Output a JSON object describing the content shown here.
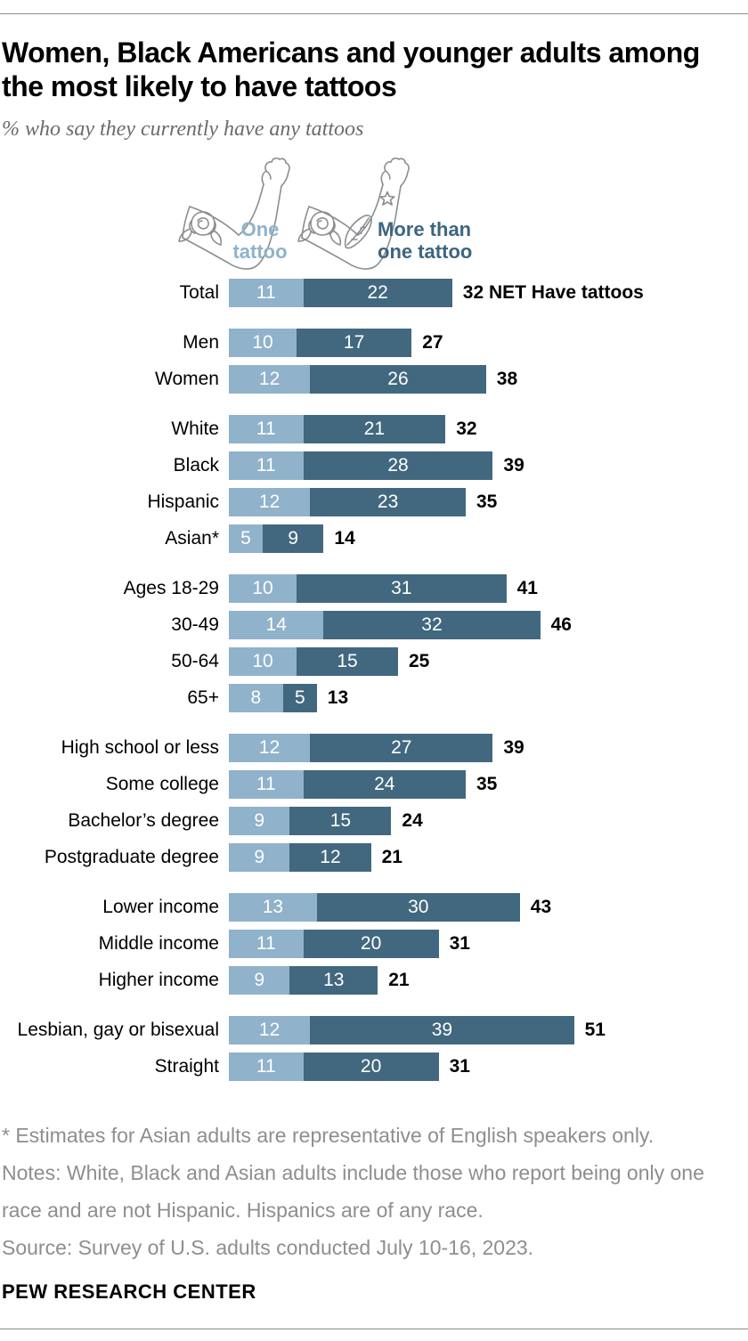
{
  "header": {
    "title": "Women, Black Americans and younger adults among\nthe most likely to have tattoos",
    "subtitle": "% who say they currently have any tattoos"
  },
  "legend": {
    "one": {
      "label": "One\ntattoo",
      "color": "#90b2cb"
    },
    "more": {
      "label": "More than\none tattoo",
      "color": "#3d6580"
    }
  },
  "chart_data": {
    "type": "bar",
    "orientation": "horizontal",
    "stacked": true,
    "units": "percent",
    "series_names": [
      "One tattoo",
      "More than one tattoo"
    ],
    "colors": {
      "one": "#90b2cb",
      "more": "#42687f"
    },
    "net_suffix_total": "NET Have tattoos",
    "groups": [
      {
        "name": "total",
        "rows": [
          {
            "label": "Total",
            "one": 11,
            "more": 22,
            "net": 32,
            "net_suffix": "NET Have tattoos"
          }
        ]
      },
      {
        "name": "gender",
        "rows": [
          {
            "label": "Men",
            "one": 10,
            "more": 17,
            "net": 27
          },
          {
            "label": "Women",
            "one": 12,
            "more": 26,
            "net": 38
          }
        ]
      },
      {
        "name": "race-ethnicity",
        "rows": [
          {
            "label": "White",
            "one": 11,
            "more": 21,
            "net": 32
          },
          {
            "label": "Black",
            "one": 11,
            "more": 28,
            "net": 39
          },
          {
            "label": "Hispanic",
            "one": 12,
            "more": 23,
            "net": 35
          },
          {
            "label": "Asian*",
            "one": 5,
            "more": 9,
            "net": 14
          }
        ]
      },
      {
        "name": "age",
        "rows": [
          {
            "label": "Ages 18-29",
            "one": 10,
            "more": 31,
            "net": 41
          },
          {
            "label": "30-49",
            "one": 14,
            "more": 32,
            "net": 46
          },
          {
            "label": "50-64",
            "one": 10,
            "more": 15,
            "net": 25
          },
          {
            "label": "65+",
            "one": 8,
            "more": 5,
            "net": 13
          }
        ]
      },
      {
        "name": "education",
        "rows": [
          {
            "label": "High school or less",
            "one": 12,
            "more": 27,
            "net": 39
          },
          {
            "label": "Some college",
            "one": 11,
            "more": 24,
            "net": 35
          },
          {
            "label": "Bachelor’s degree",
            "one": 9,
            "more": 15,
            "net": 24
          },
          {
            "label": "Postgraduate degree",
            "one": 9,
            "more": 12,
            "net": 21
          }
        ]
      },
      {
        "name": "income",
        "rows": [
          {
            "label": "Lower income",
            "one": 13,
            "more": 30,
            "net": 43
          },
          {
            "label": "Middle income",
            "one": 11,
            "more": 20,
            "net": 31
          },
          {
            "label": "Higher income",
            "one": 9,
            "more": 13,
            "net": 21
          }
        ]
      },
      {
        "name": "sexual-orientation",
        "rows": [
          {
            "label": "Lesbian, gay or bisexual",
            "one": 12,
            "more": 39,
            "net": 51
          },
          {
            "label": "Straight",
            "one": 11,
            "more": 20,
            "net": 31
          }
        ]
      }
    ]
  },
  "footnotes": [
    "* Estimates for Asian adults are representative of English speakers only.",
    "Notes: White, Black and Asian adults include those who report being only one race and are not Hispanic. Hispanics are of any race.",
    "Source: Survey of U.S. adults conducted July 10-16, 2023."
  ],
  "branding": "PEW RESEARCH CENTER"
}
